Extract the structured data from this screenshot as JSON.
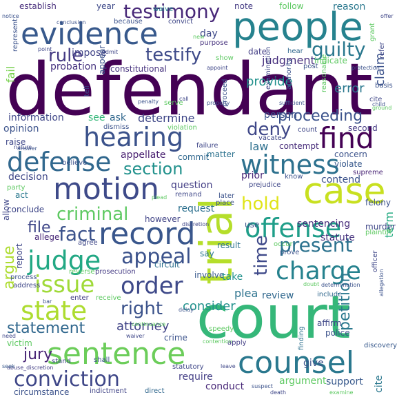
{
  "words": [
    {
      "text": "defendant",
      "color": "#440154"
    },
    {
      "text": "court",
      "color": "#35b779"
    },
    {
      "text": "people",
      "color": "#26828e"
    },
    {
      "text": "evidence",
      "color": "#38598c"
    },
    {
      "text": "case",
      "color": "#c8e020"
    },
    {
      "text": "trial",
      "color": "#b5de2b"
    },
    {
      "text": "motion",
      "color": "#3e4a89"
    },
    {
      "text": "record",
      "color": "#39568c"
    },
    {
      "text": "counsel",
      "color": "#2a788e"
    },
    {
      "text": "sentence",
      "color": "#6ccd5a"
    },
    {
      "text": "witness",
      "color": "#2d718e"
    },
    {
      "text": "hearing",
      "color": "#3b528b"
    },
    {
      "text": "defense",
      "color": "#31688e"
    },
    {
      "text": "find",
      "color": "#440154"
    },
    {
      "text": "testimony",
      "color": "#482878"
    },
    {
      "text": "offense",
      "color": "#1f9e89"
    },
    {
      "text": "charge",
      "color": "#26828e"
    },
    {
      "text": "judge",
      "color": "#22a884"
    },
    {
      "text": "order",
      "color": "#3e4989"
    },
    {
      "text": "issue",
      "color": "#a0da39"
    },
    {
      "text": "state",
      "color": "#addc30"
    },
    {
      "text": "conviction",
      "color": "#3f4788"
    },
    {
      "text": "appeal",
      "color": "#3b528b"
    },
    {
      "text": "present",
      "color": "#2c728e"
    },
    {
      "text": "guilty",
      "color": "#2a788e"
    },
    {
      "text": "testify",
      "color": "#3e4a89"
    },
    {
      "text": "criminal",
      "color": "#5ec962"
    },
    {
      "text": "fact",
      "color": "#3b528b"
    },
    {
      "text": "hold",
      "color": "#e0e418"
    },
    {
      "text": "rule",
      "color": "#443a83"
    },
    {
      "text": "deny",
      "color": "#3f4788"
    },
    {
      "text": "section",
      "color": "#21918c"
    },
    {
      "text": "statement",
      "color": "#31688e"
    },
    {
      "text": "right",
      "color": "#3b528b"
    },
    {
      "text": "jury",
      "color": "#482475"
    },
    {
      "text": "attorney",
      "color": "#414487"
    },
    {
      "text": "time",
      "color": "#3e4989"
    },
    {
      "text": "proceeding",
      "color": "#3b528b"
    },
    {
      "text": "petition",
      "color": "#2a788e"
    },
    {
      "text": "argue",
      "color": "#addc30"
    },
    {
      "text": "consider",
      "color": "#21918c"
    },
    {
      "text": "file",
      "color": "#3f4788"
    },
    {
      "text": "judgment",
      "color": "#472f7d"
    },
    {
      "text": "provide",
      "color": "#21918c"
    },
    {
      "text": "error",
      "color": "#2a788e"
    },
    {
      "text": "claim",
      "color": "#3b528b"
    },
    {
      "text": "determine",
      "color": "#3f4788"
    },
    {
      "text": "review",
      "color": "#31688e"
    },
    {
      "text": "argument",
      "color": "#5ec962"
    },
    {
      "text": "require",
      "color": "#433e85"
    },
    {
      "text": "support",
      "color": "#38598c"
    },
    {
      "text": "conduct",
      "color": "#482878"
    },
    {
      "text": "plea",
      "color": "#2c728e"
    },
    {
      "text": "term",
      "color": "#25ab82"
    },
    {
      "text": "fail",
      "color": "#7ad151"
    },
    {
      "text": "law",
      "color": "#2d708e"
    },
    {
      "text": "sentencing",
      "color": "#472c7a"
    },
    {
      "text": "statute",
      "color": "#46327e"
    },
    {
      "text": "decision",
      "color": "#3f4788"
    },
    {
      "text": "question",
      "color": "#433e85"
    },
    {
      "text": "prior",
      "color": "#482878"
    },
    {
      "text": "contend",
      "color": "#3b528b"
    },
    {
      "text": "request",
      "color": "#2d708e"
    },
    {
      "text": "appellate",
      "color": "#481f70"
    },
    {
      "text": "information",
      "color": "#3f4788"
    },
    {
      "text": "opinion",
      "color": "#3b528b"
    },
    {
      "text": "impose",
      "color": "#414487"
    },
    {
      "text": "probation",
      "color": "#46337f"
    },
    {
      "text": "constitutional",
      "color": "#46327e"
    },
    {
      "text": "give",
      "color": "#3b528b"
    },
    {
      "text": "year",
      "color": "#3e4989"
    },
    {
      "text": "waive",
      "color": "#26828e"
    },
    {
      "text": "note",
      "color": "#443a83"
    },
    {
      "text": "follow",
      "color": "#5ec962"
    },
    {
      "text": "reason",
      "color": "#2a788e"
    },
    {
      "text": "establish",
      "color": "#472d7b"
    },
    {
      "text": "because",
      "color": "#3b528b"
    },
    {
      "text": "convict",
      "color": "#3f4788"
    },
    {
      "text": "day",
      "color": "#3e4989"
    },
    {
      "text": "purpose",
      "color": "#46327e"
    },
    {
      "text": "date",
      "color": "#433e85"
    },
    {
      "text": "hear",
      "color": "#31688e"
    },
    {
      "text": "indicate",
      "color": "#5ec962"
    },
    {
      "text": "post",
      "color": "#3b528b"
    },
    {
      "text": "person",
      "color": "#3b528b"
    },
    {
      "text": "count",
      "color": "#3f4788"
    },
    {
      "text": "second",
      "color": "#443a83"
    },
    {
      "text": "matter",
      "color": "#2c728e"
    },
    {
      "text": "contempt",
      "color": "#472c7a"
    },
    {
      "text": "failure",
      "color": "#3f4788"
    },
    {
      "text": "concern",
      "color": "#3b528b"
    },
    {
      "text": "violate",
      "color": "#38598c"
    },
    {
      "text": "supreme",
      "color": "#482475"
    },
    {
      "text": "dismiss",
      "color": "#3b528b"
    },
    {
      "text": "violation",
      "color": "#5ec962"
    },
    {
      "text": "raise",
      "color": "#3f4788"
    },
    {
      "text": "believe",
      "color": "#3b528b"
    },
    {
      "text": "commit",
      "color": "#31688e"
    },
    {
      "text": "act",
      "color": "#2a788e"
    },
    {
      "text": "conclude",
      "color": "#3f4788"
    },
    {
      "text": "allege",
      "color": "#482878"
    },
    {
      "text": "however",
      "color": "#414487"
    },
    {
      "text": "agree",
      "color": "#3f4788"
    },
    {
      "text": "result",
      "color": "#2c728e"
    },
    {
      "text": "prosecution",
      "color": "#443a83"
    },
    {
      "text": "circuit",
      "color": "#2d708e"
    },
    {
      "text": "involve",
      "color": "#38598c"
    },
    {
      "text": "take",
      "color": "#21918c"
    },
    {
      "text": "report",
      "color": "#3f4788"
    },
    {
      "text": "reverse",
      "color": "#5ec962"
    },
    {
      "text": "process",
      "color": "#3b528b"
    },
    {
      "text": "address",
      "color": "#3f4788"
    },
    {
      "text": "enter",
      "color": "#433e85"
    },
    {
      "text": "receive",
      "color": "#5ec962"
    },
    {
      "text": "victim",
      "color": "#5ec962"
    },
    {
      "text": "crime",
      "color": "#3b528b"
    },
    {
      "text": "affirm",
      "color": "#3f4788"
    },
    {
      "text": "police",
      "color": "#3b528b"
    },
    {
      "text": "include",
      "color": "#31688e"
    },
    {
      "text": "finding",
      "color": "#2d708e"
    },
    {
      "text": "apply",
      "color": "#433e85"
    },
    {
      "text": "discovery",
      "color": "#38598c"
    },
    {
      "text": "cite",
      "color": "#2a788e"
    },
    {
      "text": "statutory",
      "color": "#3f4788"
    },
    {
      "text": "indictment",
      "color": "#414487"
    },
    {
      "text": "direct",
      "color": "#31688e"
    },
    {
      "text": "circumstance",
      "color": "#3b528b"
    },
    {
      "text": "abuse_discretion",
      "color": "#433e85"
    },
    {
      "text": "seek",
      "color": "#38598c"
    },
    {
      "text": "stand",
      "color": "#3f4788"
    },
    {
      "text": "shall",
      "color": "#3b528b"
    },
    {
      "text": "leave",
      "color": "#3f4788"
    },
    {
      "text": "felony",
      "color": "#3b528b"
    },
    {
      "text": "murder",
      "color": "#3f4788"
    },
    {
      "text": "plaintiff",
      "color": "#5ec962"
    },
    {
      "text": "prove",
      "color": "#3b528b"
    },
    {
      "text": "occur",
      "color": "#5ec962"
    },
    {
      "text": "say",
      "color": "#2a788e"
    },
    {
      "text": "use",
      "color": "#3b528b"
    },
    {
      "text": "place",
      "color": "#3b528b"
    },
    {
      "text": "remand",
      "color": "#3f4788"
    },
    {
      "text": "later",
      "color": "#3b528b"
    },
    {
      "text": "prejudice",
      "color": "#3f4788"
    },
    {
      "text": "know",
      "color": "#3b528b"
    },
    {
      "text": "party",
      "color": "#5ec962"
    },
    {
      "text": "allow",
      "color": "#3f4788"
    },
    {
      "text": "see",
      "color": "#35b779"
    },
    {
      "text": "ask",
      "color": "#31688e"
    },
    {
      "text": "serve",
      "color": "#5ec962"
    },
    {
      "text": "penalty",
      "color": "#3b528b"
    },
    {
      "text": "call",
      "color": "#3f4788"
    },
    {
      "text": "properly",
      "color": "#3b528b"
    },
    {
      "text": "sufficient",
      "color": "#3b528b"
    },
    {
      "text": "nature",
      "color": "#3f4788"
    },
    {
      "text": "answer",
      "color": "#3b528b"
    },
    {
      "text": "vacate",
      "color": "#3f4788"
    },
    {
      "text": "appear",
      "color": "#3b528b"
    },
    {
      "text": "show",
      "color": "#5ec962"
    },
    {
      "text": "appoint",
      "color": "#3f4788"
    },
    {
      "text": "represent",
      "color": "#3b528b"
    },
    {
      "text": "point",
      "color": "#3f4788"
    },
    {
      "text": "conclusion",
      "color": "#3b528b"
    },
    {
      "text": "admit",
      "color": "#3f4788"
    },
    {
      "text": "authority",
      "color": "#3b528b"
    },
    {
      "text": "examination",
      "color": "#3f4788"
    },
    {
      "text": "reasonable",
      "color": "#5ec962"
    },
    {
      "text": "basis",
      "color": "#3b528b"
    },
    {
      "text": "cite",
      "color": "#3f4788"
    },
    {
      "text": "ground",
      "color": "#5ec962"
    },
    {
      "text": "child",
      "color": "#3b528b"
    },
    {
      "text": "grant",
      "color": "#5ec962"
    },
    {
      "text": "refer",
      "color": "#3f4788"
    },
    {
      "text": "protection",
      "color": "#3b528b"
    },
    {
      "text": "tell",
      "color": "#3f4788"
    },
    {
      "text": "proceed",
      "color": "#3b528b"
    },
    {
      "text": "new",
      "color": "#5ec962"
    },
    {
      "text": "offer",
      "color": "#3f4788"
    },
    {
      "text": "notice",
      "color": "#3b528b"
    },
    {
      "text": "speedy",
      "color": "#5ec962"
    },
    {
      "text": "waiver",
      "color": "#3f4788"
    },
    {
      "text": "continuance",
      "color": "#5ec962"
    },
    {
      "text": "delay",
      "color": "#3b528b"
    },
    {
      "text": "contention",
      "color": "#5ec962"
    },
    {
      "text": "doubt",
      "color": "#5ec962"
    },
    {
      "text": "determination",
      "color": "#3b528b"
    },
    {
      "text": "need",
      "color": "#3f4788"
    },
    {
      "text": "bar",
      "color": "#3b528b"
    },
    {
      "text": "death",
      "color": "#3f4788"
    },
    {
      "text": "suspect",
      "color": "#3b528b"
    },
    {
      "text": "examine",
      "color": "#5ec962"
    },
    {
      "text": "officer",
      "color": "#3f4788"
    },
    {
      "text": "allegation",
      "color": "#3b528b"
    },
    {
      "text": "discretion",
      "color": "#3f4788"
    },
    {
      "text": "plead",
      "color": "#5ec962"
    }
  ]
}
